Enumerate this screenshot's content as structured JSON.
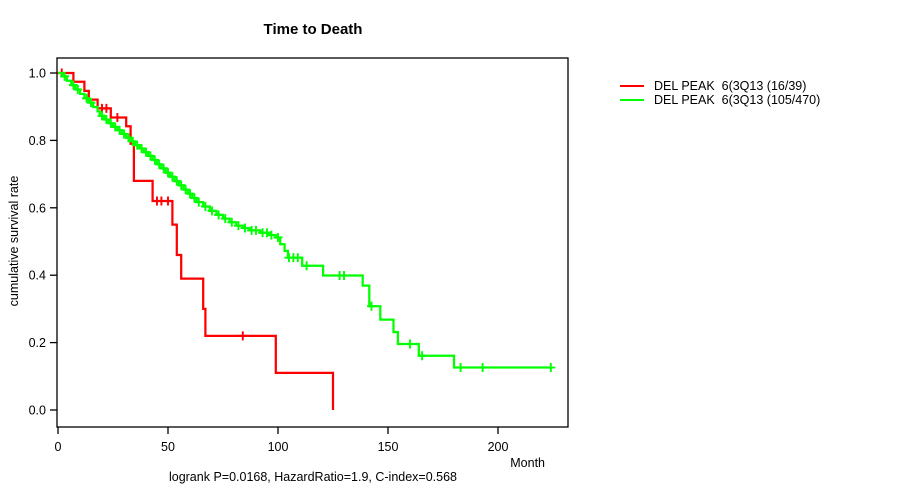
{
  "chart_data": {
    "type": "line",
    "subtype": "kaplan_meier_step_plot",
    "title": "Time to Death",
    "xlabel": "Month",
    "ylabel": "cumulative survival rate",
    "annotation": "logrank P=0.0168, HazardRatio=1.9, C-index=0.568",
    "xlim": [
      0,
      232
    ],
    "ylim": [
      0,
      1
    ],
    "grid": false,
    "legend_position": "right-outside",
    "x_ticks": [
      {
        "value": 0,
        "label": "0"
      },
      {
        "value": 50,
        "label": "50"
      },
      {
        "value": 100,
        "label": "100"
      },
      {
        "value": 150,
        "label": "150"
      },
      {
        "value": 200,
        "label": "200"
      }
    ],
    "y_ticks": [
      {
        "value": 0.0,
        "label": "0.0"
      },
      {
        "value": 0.2,
        "label": "0.2"
      },
      {
        "value": 0.4,
        "label": "0.4"
      },
      {
        "value": 0.6,
        "label": "0.6"
      },
      {
        "value": 0.8,
        "label": "0.8"
      },
      {
        "value": 1.0,
        "label": "1.0"
      }
    ],
    "series": [
      {
        "name": "DEL PEAK  6(3Q13 (16/39)",
        "color": "#ff0000",
        "end_time": 125,
        "steps": [
          [
            0,
            1.0
          ],
          [
            7,
            0.974
          ],
          [
            12,
            0.947
          ],
          [
            14,
            0.921
          ],
          [
            18,
            0.895
          ],
          [
            24,
            0.868
          ],
          [
            31,
            0.842
          ],
          [
            33,
            0.79
          ],
          [
            34.5,
            0.68
          ],
          [
            43,
            0.62
          ],
          [
            52,
            0.55
          ],
          [
            54,
            0.46
          ],
          [
            56,
            0.39
          ],
          [
            66,
            0.3
          ],
          [
            67,
            0.22
          ],
          [
            99,
            0.11
          ],
          [
            125,
            0.0
          ]
        ],
        "censor_times": [
          1.7,
          20,
          22,
          27,
          45,
          47,
          50,
          84
        ]
      },
      {
        "name": "DEL PEAK  6(3Q13 (105/470)",
        "color": "#00ff00",
        "end_time": 224,
        "steps": [
          [
            0,
            1.0
          ],
          [
            2,
            0.99
          ],
          [
            4,
            0.977
          ],
          [
            6,
            0.964
          ],
          [
            8,
            0.951
          ],
          [
            10,
            0.938
          ],
          [
            12,
            0.925
          ],
          [
            14,
            0.912
          ],
          [
            16,
            0.899
          ],
          [
            18,
            0.886
          ],
          [
            19,
            0.873
          ],
          [
            21,
            0.862
          ],
          [
            23,
            0.851
          ],
          [
            25,
            0.84
          ],
          [
            27,
            0.83
          ],
          [
            29,
            0.819
          ],
          [
            31,
            0.808
          ],
          [
            33,
            0.797
          ],
          [
            35,
            0.786
          ],
          [
            37,
            0.776
          ],
          [
            39,
            0.765
          ],
          [
            41,
            0.754
          ],
          [
            43,
            0.742
          ],
          [
            45,
            0.729
          ],
          [
            47,
            0.717
          ],
          [
            49,
            0.704
          ],
          [
            51,
            0.692
          ],
          [
            53,
            0.679
          ],
          [
            55,
            0.667
          ],
          [
            57,
            0.654
          ],
          [
            59,
            0.642
          ],
          [
            61,
            0.629
          ],
          [
            63,
            0.617
          ],
          [
            66,
            0.604
          ],
          [
            69,
            0.591
          ],
          [
            72,
            0.579
          ],
          [
            75,
            0.568
          ],
          [
            78,
            0.557
          ],
          [
            81,
            0.547
          ],
          [
            84,
            0.54
          ],
          [
            87,
            0.533
          ],
          [
            92,
            0.526
          ],
          [
            96,
            0.519
          ],
          [
            99,
            0.512
          ],
          [
            101,
            0.492
          ],
          [
            103,
            0.472
          ],
          [
            104.5,
            0.452
          ],
          [
            111,
            0.428
          ],
          [
            120.5,
            0.399
          ],
          [
            138.5,
            0.369
          ],
          [
            141.5,
            0.308
          ],
          [
            146.5,
            0.268
          ],
          [
            152.5,
            0.231
          ],
          [
            154.5,
            0.196
          ],
          [
            164,
            0.161
          ],
          [
            180,
            0.126
          ]
        ],
        "censor_times": [
          3,
          7,
          9,
          13,
          15,
          20,
          22,
          24,
          26,
          28,
          30,
          32,
          34,
          36,
          38,
          40,
          42,
          44,
          46,
          48,
          50,
          52,
          54,
          56,
          58,
          60,
          62,
          64,
          67,
          70,
          73,
          76,
          79,
          82,
          85,
          88,
          90,
          93,
          95,
          97,
          100,
          105,
          107,
          109,
          113,
          128,
          130,
          142.5,
          160,
          165.5,
          183,
          193,
          224
        ]
      }
    ]
  }
}
